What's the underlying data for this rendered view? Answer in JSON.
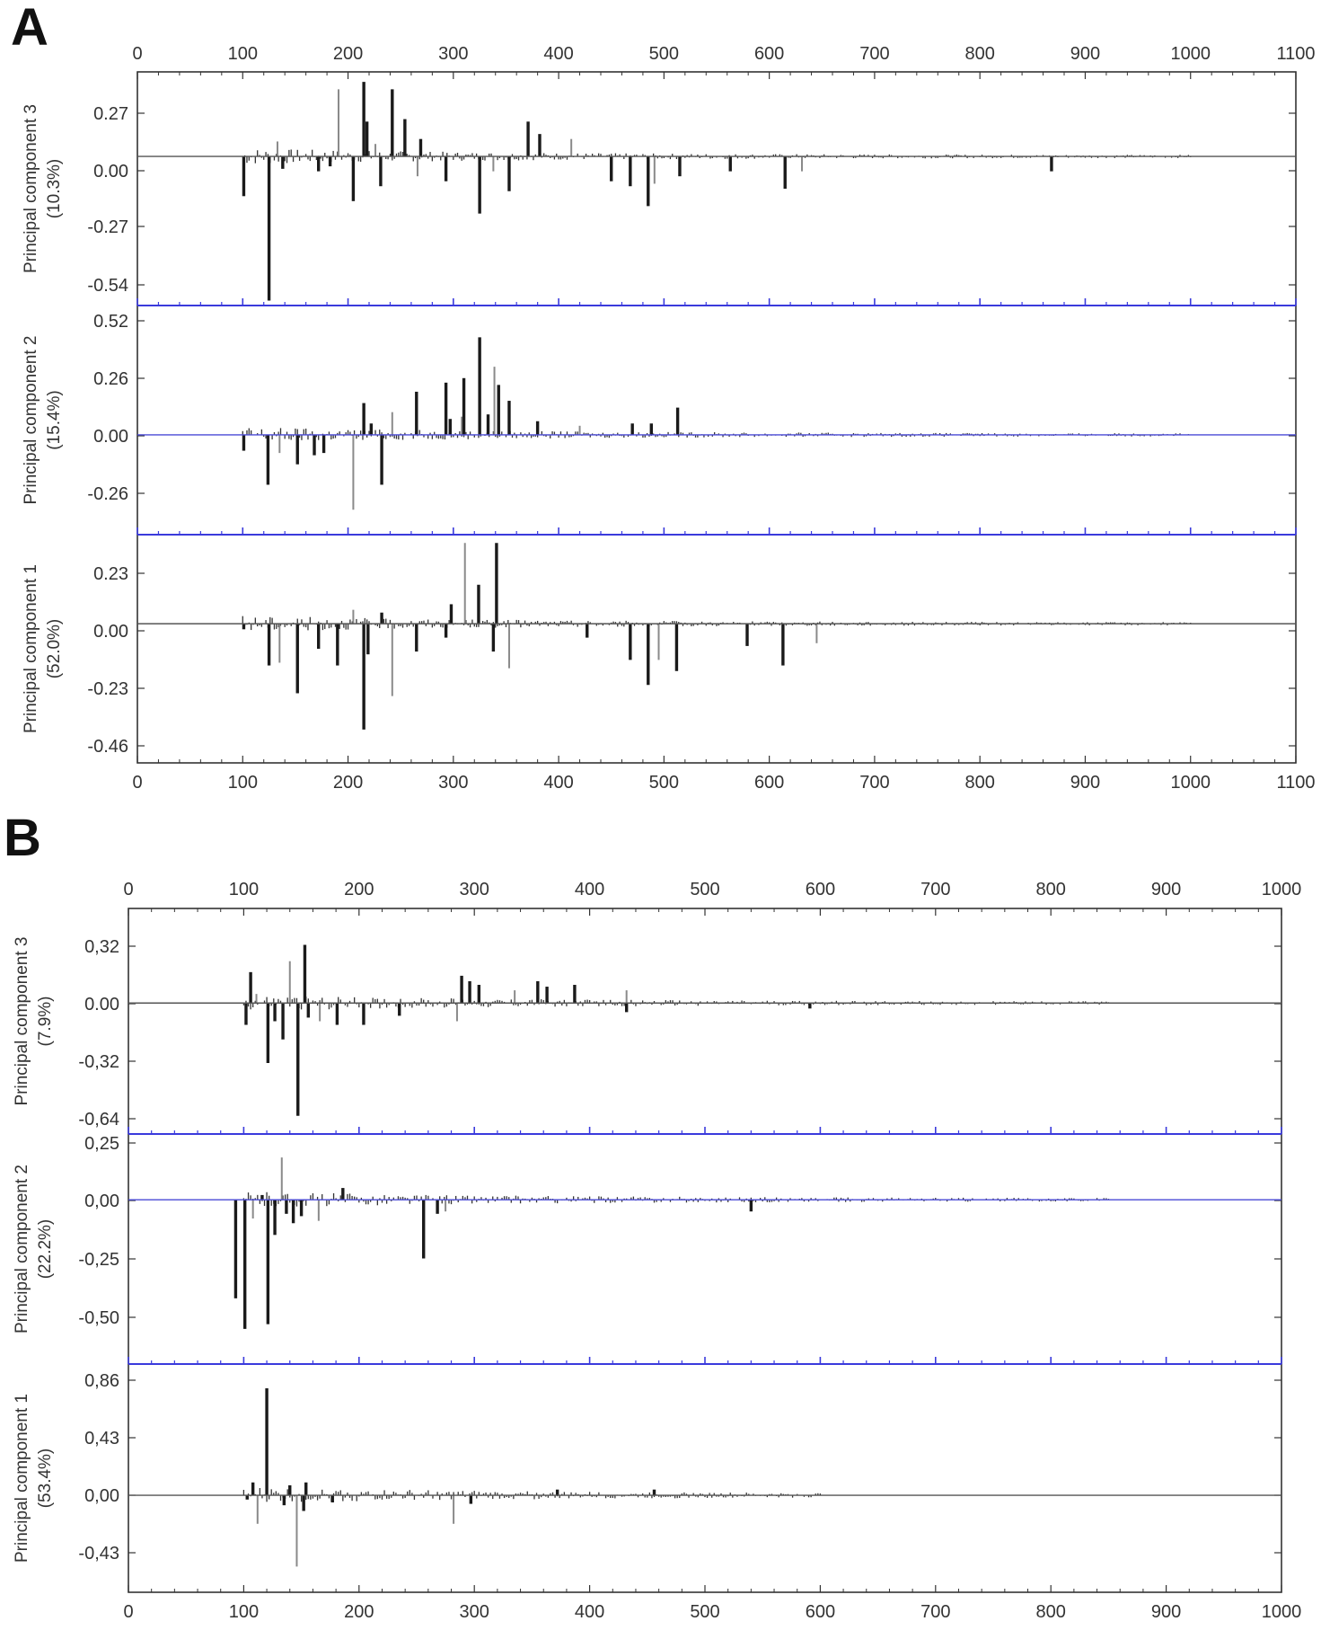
{
  "panels": [
    {
      "letter": "A",
      "x_ticks": [
        "0",
        "100",
        "200",
        "300",
        "400",
        "500",
        "600",
        "700",
        "800",
        "900",
        "1000",
        "1100"
      ],
      "xlim": [
        0,
        1100
      ],
      "subplots": [
        {
          "label": "Principal component 3",
          "variance": "(10.3%)",
          "y_ticks": [
            "0.27",
            "0.00",
            "-0.27",
            "-0.54"
          ],
          "ylim": [
            -0.6,
            0.34
          ]
        },
        {
          "label": "Principal component 2",
          "variance": "(15.4%)",
          "y_ticks": [
            "0.52",
            "0.26",
            "0.00",
            "-0.26"
          ],
          "ylim": [
            -0.44,
            0.57
          ]
        },
        {
          "label": "Principal component 1",
          "variance": "(52.0%)",
          "y_ticks": [
            "0.23",
            "0.00",
            "-0.23",
            "-0.46"
          ],
          "ylim": [
            -0.5,
            0.32
          ]
        }
      ]
    },
    {
      "letter": "B",
      "x_ticks": [
        "0",
        "100",
        "200",
        "300",
        "400",
        "500",
        "600",
        "700",
        "800",
        "900",
        "1000"
      ],
      "xlim": [
        0,
        1000
      ],
      "subplots": [
        {
          "label": "Principal component 3",
          "variance": "(7.9%)",
          "y_ticks": [
            "0,32",
            "0.00",
            "-0,32",
            "-0,64"
          ],
          "ylim": [
            -0.72,
            0.52
          ]
        },
        {
          "label": "Principal component 2",
          "variance": "(22.2%)",
          "y_ticks": [
            "0,25",
            "0,00",
            "-0,25",
            "-0,50"
          ],
          "ylim": [
            -0.7,
            0.28
          ]
        },
        {
          "label": "Principal component 1",
          "variance": "(53.4%)",
          "y_ticks": [
            "0,86",
            "0,43",
            "0,00",
            "-0,43"
          ],
          "ylim": [
            -0.68,
            0.92
          ]
        }
      ]
    }
  ],
  "chart_data": [
    {
      "type": "bar",
      "panel": "A",
      "subplot": "Principal component 3",
      "xlim": [
        0,
        1100
      ],
      "ylim": [
        -0.6,
        0.34
      ],
      "stems": [
        {
          "x": 101,
          "y": -0.16
        },
        {
          "x": 125,
          "y": -0.58
        },
        {
          "x": 133,
          "y": 0.06
        },
        {
          "x": 138,
          "y": -0.05
        },
        {
          "x": 172,
          "y": -0.06
        },
        {
          "x": 183,
          "y": -0.04
        },
        {
          "x": 191,
          "y": 0.27
        },
        {
          "x": 205,
          "y": -0.18
        },
        {
          "x": 215,
          "y": 0.3
        },
        {
          "x": 218,
          "y": 0.14
        },
        {
          "x": 226,
          "y": 0.05
        },
        {
          "x": 231,
          "y": -0.12
        },
        {
          "x": 242,
          "y": 0.27
        },
        {
          "x": 254,
          "y": 0.15
        },
        {
          "x": 266,
          "y": -0.08
        },
        {
          "x": 269,
          "y": 0.07
        },
        {
          "x": 293,
          "y": -0.1
        },
        {
          "x": 325,
          "y": -0.23
        },
        {
          "x": 338,
          "y": -0.06
        },
        {
          "x": 353,
          "y": -0.14
        },
        {
          "x": 371,
          "y": 0.14
        },
        {
          "x": 382,
          "y": 0.09
        },
        {
          "x": 412,
          "y": 0.07
        },
        {
          "x": 450,
          "y": -0.1
        },
        {
          "x": 468,
          "y": -0.12
        },
        {
          "x": 485,
          "y": -0.2
        },
        {
          "x": 491,
          "y": -0.11
        },
        {
          "x": 515,
          "y": -0.08
        },
        {
          "x": 563,
          "y": -0.06
        },
        {
          "x": 615,
          "y": -0.13
        },
        {
          "x": 631,
          "y": -0.06
        },
        {
          "x": 868,
          "y": -0.06
        }
      ]
    },
    {
      "type": "bar",
      "panel": "A",
      "subplot": "Principal component 2",
      "xlim": [
        0,
        1100
      ],
      "ylim": [
        -0.44,
        0.57
      ],
      "stems": [
        {
          "x": 101,
          "y": -0.07
        },
        {
          "x": 124,
          "y": -0.22
        },
        {
          "x": 135,
          "y": -0.08
        },
        {
          "x": 152,
          "y": -0.13
        },
        {
          "x": 168,
          "y": -0.09
        },
        {
          "x": 177,
          "y": -0.08
        },
        {
          "x": 205,
          "y": -0.33
        },
        {
          "x": 215,
          "y": 0.14
        },
        {
          "x": 222,
          "y": 0.05
        },
        {
          "x": 232,
          "y": -0.22
        },
        {
          "x": 242,
          "y": 0.1
        },
        {
          "x": 265,
          "y": 0.19
        },
        {
          "x": 293,
          "y": 0.23
        },
        {
          "x": 297,
          "y": 0.07
        },
        {
          "x": 308,
          "y": 0.08
        },
        {
          "x": 310,
          "y": 0.25
        },
        {
          "x": 325,
          "y": 0.43
        },
        {
          "x": 333,
          "y": 0.09
        },
        {
          "x": 339,
          "y": 0.3
        },
        {
          "x": 343,
          "y": 0.22
        },
        {
          "x": 353,
          "y": 0.15
        },
        {
          "x": 380,
          "y": 0.06
        },
        {
          "x": 420,
          "y": 0.04
        },
        {
          "x": 470,
          "y": 0.05
        },
        {
          "x": 488,
          "y": 0.05
        },
        {
          "x": 513,
          "y": 0.12
        }
      ]
    },
    {
      "type": "bar",
      "panel": "A",
      "subplot": "Principal component 1",
      "xlim": [
        0,
        1100
      ],
      "ylim": [
        -0.5,
        0.32
      ],
      "stems": [
        {
          "x": 101,
          "y": -0.02
        },
        {
          "x": 125,
          "y": -0.15
        },
        {
          "x": 135,
          "y": -0.14
        },
        {
          "x": 152,
          "y": -0.25
        },
        {
          "x": 172,
          "y": -0.09
        },
        {
          "x": 190,
          "y": -0.15
        },
        {
          "x": 205,
          "y": 0.05
        },
        {
          "x": 215,
          "y": -0.38
        },
        {
          "x": 219,
          "y": -0.11
        },
        {
          "x": 232,
          "y": 0.04
        },
        {
          "x": 242,
          "y": -0.26
        },
        {
          "x": 265,
          "y": -0.1
        },
        {
          "x": 293,
          "y": -0.05
        },
        {
          "x": 298,
          "y": 0.07
        },
        {
          "x": 311,
          "y": 0.29
        },
        {
          "x": 324,
          "y": 0.14
        },
        {
          "x": 338,
          "y": -0.1
        },
        {
          "x": 341,
          "y": 0.29
        },
        {
          "x": 353,
          "y": -0.16
        },
        {
          "x": 427,
          "y": -0.05
        },
        {
          "x": 468,
          "y": -0.13
        },
        {
          "x": 485,
          "y": -0.22
        },
        {
          "x": 495,
          "y": -0.13
        },
        {
          "x": 512,
          "y": -0.17
        },
        {
          "x": 579,
          "y": -0.08
        },
        {
          "x": 613,
          "y": -0.15
        },
        {
          "x": 645,
          "y": -0.07
        }
      ]
    },
    {
      "type": "bar",
      "panel": "B",
      "subplot": "Principal component 3",
      "xlim": [
        0,
        1000
      ],
      "ylim": [
        -0.72,
        0.52
      ],
      "stems": [
        {
          "x": 102,
          "y": -0.12
        },
        {
          "x": 106,
          "y": 0.17
        },
        {
          "x": 111,
          "y": 0.05
        },
        {
          "x": 121,
          "y": -0.33
        },
        {
          "x": 127,
          "y": -0.1
        },
        {
          "x": 134,
          "y": -0.2
        },
        {
          "x": 140,
          "y": 0.23
        },
        {
          "x": 147,
          "y": -0.62
        },
        {
          "x": 153,
          "y": 0.32
        },
        {
          "x": 156,
          "y": -0.08
        },
        {
          "x": 166,
          "y": -0.1
        },
        {
          "x": 181,
          "y": -0.12
        },
        {
          "x": 204,
          "y": -0.12
        },
        {
          "x": 235,
          "y": -0.07
        },
        {
          "x": 285,
          "y": -0.1
        },
        {
          "x": 289,
          "y": 0.15
        },
        {
          "x": 296,
          "y": 0.12
        },
        {
          "x": 304,
          "y": 0.1
        },
        {
          "x": 335,
          "y": 0.07
        },
        {
          "x": 355,
          "y": 0.12
        },
        {
          "x": 363,
          "y": 0.09
        },
        {
          "x": 387,
          "y": 0.1
        },
        {
          "x": 432,
          "y": 0.07
        },
        {
          "x": 432,
          "y": -0.05
        },
        {
          "x": 591,
          "y": -0.03
        }
      ]
    },
    {
      "type": "bar",
      "panel": "B",
      "subplot": "Principal component 2",
      "xlim": [
        0,
        1000
      ],
      "ylim": [
        -0.7,
        0.28
      ],
      "stems": [
        {
          "x": 93,
          "y": -0.42
        },
        {
          "x": 101,
          "y": -0.55
        },
        {
          "x": 108,
          "y": -0.08
        },
        {
          "x": 116,
          "y": 0.02
        },
        {
          "x": 121,
          "y": -0.53
        },
        {
          "x": 127,
          "y": -0.15
        },
        {
          "x": 133,
          "y": 0.18
        },
        {
          "x": 137,
          "y": -0.06
        },
        {
          "x": 143,
          "y": -0.1
        },
        {
          "x": 150,
          "y": -0.07
        },
        {
          "x": 165,
          "y": -0.09
        },
        {
          "x": 186,
          "y": 0.05
        },
        {
          "x": 256,
          "y": -0.25
        },
        {
          "x": 268,
          "y": -0.06
        },
        {
          "x": 275,
          "y": -0.05
        },
        {
          "x": 540,
          "y": -0.05
        }
      ]
    },
    {
      "type": "bar",
      "panel": "B",
      "subplot": "Principal component 1",
      "xlim": [
        0,
        1000
      ],
      "ylim": [
        -0.68,
        0.92
      ],
      "stems": [
        {
          "x": 103,
          "y": -0.03
        },
        {
          "x": 108,
          "y": 0.09
        },
        {
          "x": 112,
          "y": -0.2
        },
        {
          "x": 120,
          "y": 0.75
        },
        {
          "x": 135,
          "y": -0.07
        },
        {
          "x": 140,
          "y": 0.07
        },
        {
          "x": 146,
          "y": -0.5
        },
        {
          "x": 152,
          "y": -0.11
        },
        {
          "x": 154,
          "y": 0.09
        },
        {
          "x": 177,
          "y": -0.05
        },
        {
          "x": 282,
          "y": -0.2
        },
        {
          "x": 297,
          "y": -0.06
        },
        {
          "x": 372,
          "y": 0.04
        },
        {
          "x": 456,
          "y": 0.04
        }
      ]
    }
  ]
}
